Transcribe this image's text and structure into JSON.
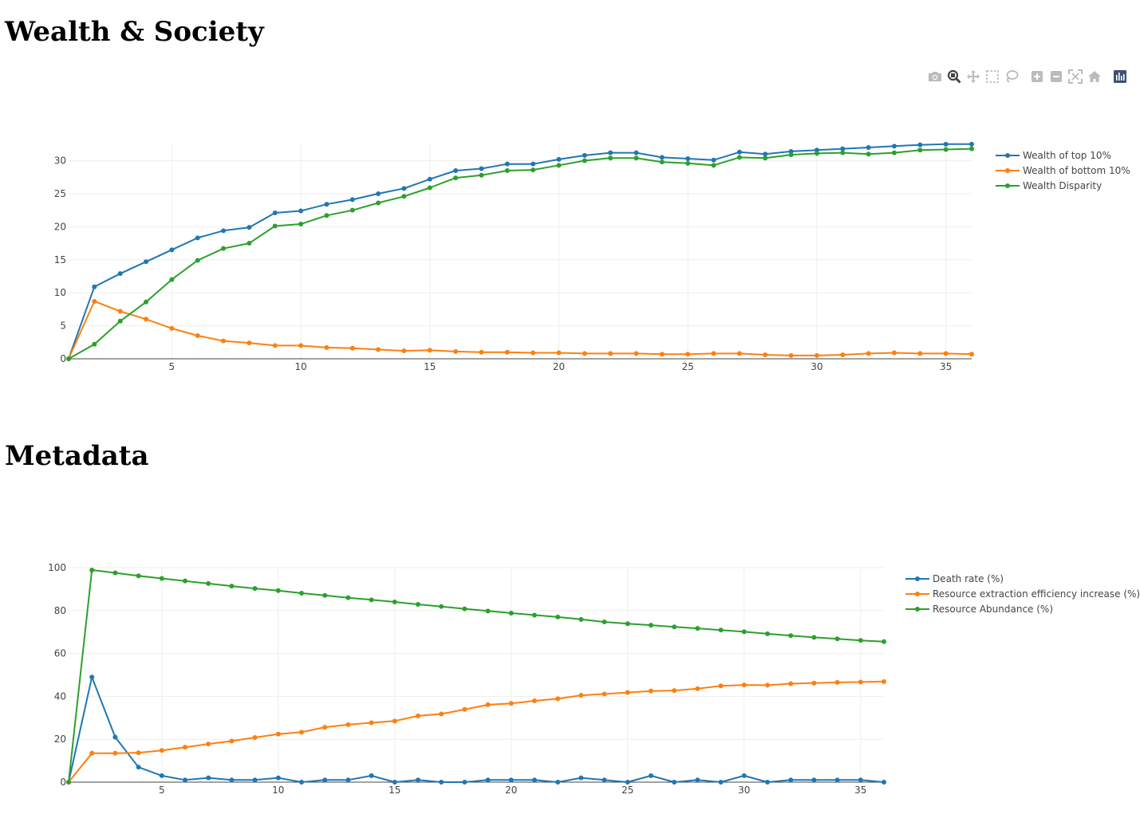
{
  "headings": {
    "section1": "Wealth & Society",
    "section2": "Metadata"
  },
  "modebar": {
    "icons": [
      "camera-icon",
      "zoom-icon",
      "pan-icon",
      "box-select-icon",
      "lasso-icon",
      "zoom-in-icon",
      "zoom-out-icon",
      "autoscale-icon",
      "reset-axes-icon",
      "plotly-logo-icon"
    ]
  },
  "colors": {
    "series1": "#1f77b4",
    "series2": "#ff7f0e",
    "series3": "#2ca02c",
    "grid": "#eeeeee",
    "zeroline": "#444444",
    "active_icon": "#444444",
    "icon": "#bbbbbb",
    "logo_bg": "#3f4f75"
  },
  "chart_data": [
    {
      "type": "line",
      "xlim": [
        1,
        36
      ],
      "ylim": [
        0,
        32.6
      ],
      "xticks": [
        5,
        10,
        15,
        20,
        25,
        30,
        35
      ],
      "yticks": [
        0,
        5,
        10,
        15,
        20,
        25,
        30
      ],
      "grid": true,
      "legend_position": "top-right",
      "x": [
        1,
        2,
        3,
        4,
        5,
        6,
        7,
        8,
        9,
        10,
        11,
        12,
        13,
        14,
        15,
        16,
        17,
        18,
        19,
        20,
        21,
        22,
        23,
        24,
        25,
        26,
        27,
        28,
        29,
        30,
        31,
        32,
        33,
        34,
        35,
        36
      ],
      "series": [
        {
          "name": "Wealth of top 10%",
          "values": [
            0,
            10.9,
            12.9,
            14.7,
            16.5,
            18.3,
            19.4,
            19.9,
            22.1,
            22.4,
            23.4,
            24.1,
            25.0,
            25.8,
            27.2,
            28.5,
            28.8,
            29.5,
            29.5,
            30.2,
            30.8,
            31.2,
            31.2,
            30.5,
            30.3,
            30.1,
            31.3,
            31.0,
            31.4,
            31.6,
            31.8,
            32.0,
            32.2,
            32.4,
            32.5,
            32.5
          ]
        },
        {
          "name": "Wealth of bottom 10%",
          "values": [
            0,
            8.7,
            7.2,
            6.0,
            4.6,
            3.5,
            2.7,
            2.4,
            2.0,
            2.0,
            1.7,
            1.6,
            1.4,
            1.2,
            1.3,
            1.1,
            1.0,
            1.0,
            0.9,
            0.9,
            0.8,
            0.8,
            0.8,
            0.7,
            0.7,
            0.8,
            0.8,
            0.6,
            0.5,
            0.5,
            0.6,
            0.8,
            0.9,
            0.8,
            0.8,
            0.7
          ]
        },
        {
          "name": "Wealth Disparity",
          "values": [
            0,
            2.2,
            5.7,
            8.6,
            12.0,
            14.9,
            16.7,
            17.5,
            20.1,
            20.4,
            21.7,
            22.5,
            23.6,
            24.6,
            25.9,
            27.4,
            27.8,
            28.5,
            28.6,
            29.3,
            30.0,
            30.4,
            30.4,
            29.8,
            29.6,
            29.3,
            30.5,
            30.4,
            30.9,
            31.1,
            31.2,
            31.0,
            31.2,
            31.6,
            31.7,
            31.8
          ]
        }
      ]
    },
    {
      "type": "line",
      "xlim": [
        1,
        36
      ],
      "ylim": [
        0,
        100
      ],
      "xticks": [
        5,
        10,
        15,
        20,
        25,
        30,
        35
      ],
      "yticks": [
        0,
        20,
        40,
        60,
        80,
        100
      ],
      "grid": true,
      "legend_position": "top-right",
      "x": [
        1,
        2,
        3,
        4,
        5,
        6,
        7,
        8,
        9,
        10,
        11,
        12,
        13,
        14,
        15,
        16,
        17,
        18,
        19,
        20,
        21,
        22,
        23,
        24,
        25,
        26,
        27,
        28,
        29,
        30,
        31,
        32,
        33,
        34,
        35,
        36
      ],
      "series": [
        {
          "name": "Death rate (%)",
          "values": [
            0,
            49,
            21,
            7,
            3,
            1,
            2,
            1,
            1,
            2,
            0,
            1,
            1,
            3,
            0,
            1,
            0,
            0,
            1,
            1,
            1,
            0,
            2,
            1,
            0,
            3,
            0,
            1,
            0,
            3,
            0,
            1,
            1,
            1,
            1,
            0
          ]
        },
        {
          "name": "Resource extraction efficiency increase (%)",
          "values": [
            0,
            13.5,
            13.5,
            13.7,
            14.8,
            16.3,
            17.8,
            19.2,
            20.8,
            22.4,
            23.3,
            25.6,
            26.8,
            27.7,
            28.5,
            30.9,
            31.8,
            33.9,
            36.1,
            36.7,
            37.9,
            38.9,
            40.5,
            41.1,
            41.8,
            42.5,
            42.7,
            43.6,
            44.9,
            45.3,
            45.2,
            45.9,
            46.2,
            46.5,
            46.7,
            46.9
          ]
        },
        {
          "name": "Resource Abundance (%)",
          "values": [
            0,
            98.9,
            97.6,
            96.2,
            95.0,
            93.8,
            92.6,
            91.4,
            90.3,
            89.3,
            88.1,
            87.1,
            86.0,
            85.0,
            84.0,
            82.9,
            81.9,
            80.8,
            79.8,
            78.8,
            77.9,
            77.0,
            75.9,
            74.7,
            73.9,
            73.2,
            72.4,
            71.7,
            70.9,
            70.1,
            69.2,
            68.3,
            67.5,
            66.8,
            66.1,
            65.5
          ]
        }
      ]
    }
  ]
}
